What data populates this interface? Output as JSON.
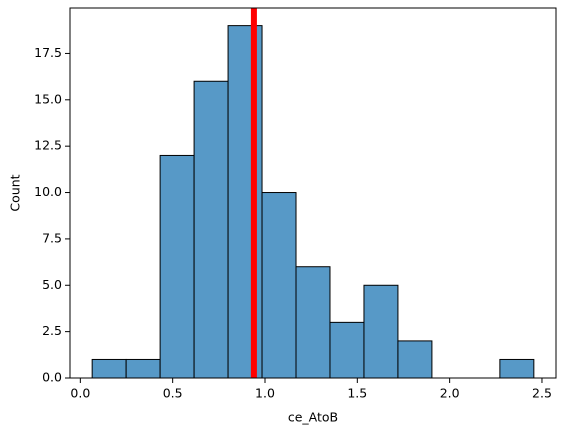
{
  "chart_data": {
    "type": "histogram",
    "xlabel": "ce_AtoB",
    "ylabel": "Count",
    "bins": [
      0.064,
      0.248,
      0.432,
      0.616,
      0.8,
      0.984,
      1.168,
      1.352,
      1.536,
      1.72,
      1.904,
      2.088,
      2.272,
      2.456
    ],
    "values": [
      1,
      1,
      12,
      16,
      19,
      10,
      6,
      3,
      5,
      2,
      0,
      0,
      1
    ],
    "color": "#5799c7",
    "edgecolor": "#000000",
    "vline": {
      "x": 0.94,
      "color": "#ff0000"
    },
    "xlim": [
      -0.056,
      2.576
    ],
    "xticks": [
      {
        "value": 0,
        "label": "0.0"
      },
      0.5,
      {
        "value": 1,
        "label": "1.0"
      },
      1.5,
      {
        "value": 2,
        "label": "2.0"
      },
      2.5
    ],
    "ylim": [
      0,
      19.95
    ],
    "yticks": [
      {
        "value": 0,
        "label": "0.0"
      },
      2.5,
      {
        "value": 5,
        "label": "5.0"
      },
      7.5,
      {
        "value": 10,
        "label": "10.0"
      },
      12.5,
      {
        "value": 15,
        "label": "15.0"
      },
      17.5
    ]
  }
}
